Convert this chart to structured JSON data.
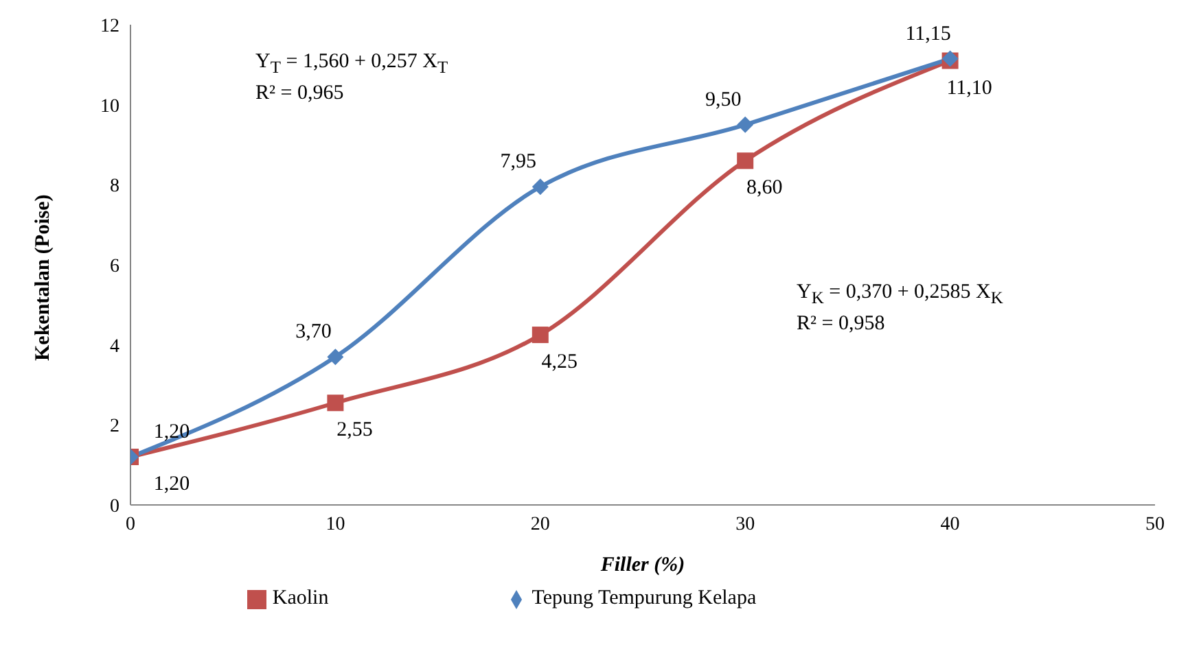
{
  "chart_data": {
    "type": "line",
    "xlabel": "Filler (%)",
    "ylabel": "Kekentalan (Poise)",
    "x": [
      0,
      10,
      20,
      30,
      40
    ],
    "xlim": [
      0,
      50
    ],
    "xticks": [
      0,
      10,
      20,
      30,
      40,
      50
    ],
    "ylim": [
      0,
      12
    ],
    "yticks": [
      0,
      2,
      4,
      6,
      8,
      10,
      12
    ],
    "grid": false,
    "legend": "bottom",
    "line_style": "solid",
    "series": [
      {
        "name": "Kaolin",
        "color": "#c0504d",
        "marker": "square",
        "values": [
          1.2,
          2.55,
          4.25,
          8.6,
          11.1
        ],
        "value_labels": [
          "1,20",
          "2,55",
          "4,25",
          "8,60",
          "11,10"
        ]
      },
      {
        "name": "Tepung Tempurung Kelapa",
        "color": "#4f81bd",
        "marker": "diamond",
        "values": [
          1.2,
          3.7,
          7.95,
          9.5,
          11.15
        ],
        "value_labels": [
          "1,20",
          "3,70",
          "7,95",
          "9,50",
          "11,15"
        ]
      }
    ],
    "annotations": [
      "Y$_{T}$ = 1,560 + 0,257 X$_{T}$\nR² = 0,965",
      "Y$_{K}$ = 0,370 + 0,2585 X$_{K}$\nR² = 0,958"
    ]
  }
}
